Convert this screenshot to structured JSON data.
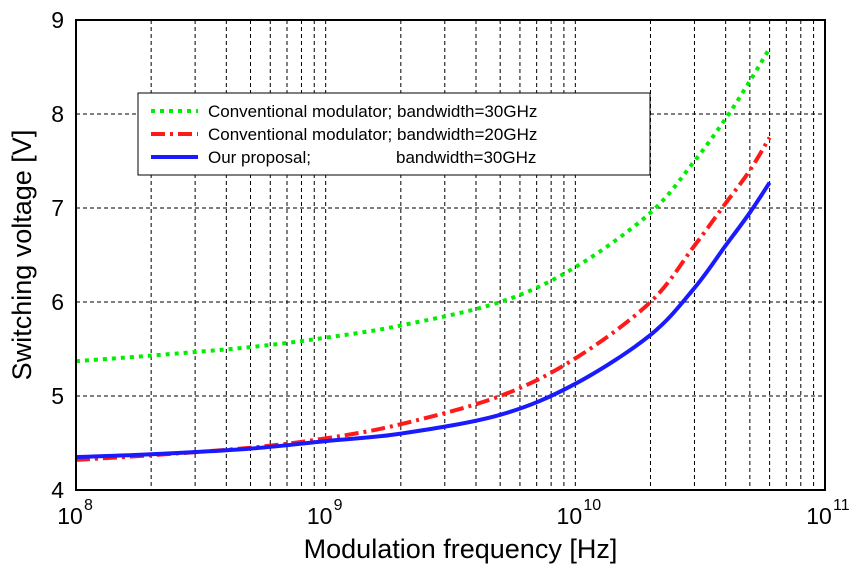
{
  "chart_data": {
    "type": "line",
    "title": "",
    "xlabel": "Modulation frequency [Hz]",
    "ylabel": "Switching voltage [V]",
    "xscale": "log",
    "xlim": [
      100000000,
      100000000000
    ],
    "ylim": [
      4,
      9
    ],
    "grid": true,
    "legend_position": "top-left",
    "x_ticks": [
      {
        "value": 100000000,
        "base": "10",
        "exp": "8"
      },
      {
        "value": 1000000000,
        "base": "10",
        "exp": "9"
      },
      {
        "value": 10000000000,
        "base": "10",
        "exp": "10"
      },
      {
        "value": 100000000000,
        "base": "10",
        "exp": "11"
      }
    ],
    "y_ticks": [
      "4",
      "5",
      "6",
      "7",
      "8",
      "9"
    ],
    "series": [
      {
        "name": "Conventional modulator; bandwidth=30GHz",
        "color": "#00ee00",
        "style": "dotted",
        "x": [
          100000000.0,
          200000000.0,
          500000000.0,
          1000000000.0,
          2000000000.0,
          5000000000.0,
          10000000000.0,
          20000000000.0,
          30000000000.0,
          40000000000.0,
          50000000000.0,
          60000000000.0
        ],
        "y": [
          5.37,
          5.43,
          5.52,
          5.62,
          5.75,
          6.0,
          6.37,
          6.95,
          7.5,
          7.95,
          8.35,
          8.7
        ]
      },
      {
        "name": "Conventional modulator; bandwidth=20GHz",
        "color": "#ff1a1a",
        "style": "dashdot",
        "x": [
          100000000.0,
          200000000.0,
          500000000.0,
          1000000000.0,
          2000000000.0,
          5000000000.0,
          10000000000.0,
          20000000000.0,
          30000000000.0,
          40000000000.0,
          50000000000.0,
          60000000000.0
        ],
        "y": [
          4.32,
          4.37,
          4.45,
          4.55,
          4.7,
          5.0,
          5.4,
          6.0,
          6.6,
          7.05,
          7.4,
          7.75
        ]
      },
      {
        "name": "Our proposal;                  bandwidth=30GHz",
        "color": "#1a1aff",
        "style": "solid",
        "x": [
          100000000.0,
          200000000.0,
          500000000.0,
          1000000000.0,
          2000000000.0,
          5000000000.0,
          10000000000.0,
          20000000000.0,
          30000000000.0,
          40000000000.0,
          50000000000.0,
          60000000000.0
        ],
        "y": [
          4.35,
          4.38,
          4.44,
          4.52,
          4.6,
          4.8,
          5.13,
          5.65,
          6.15,
          6.6,
          6.95,
          7.27
        ]
      }
    ]
  }
}
